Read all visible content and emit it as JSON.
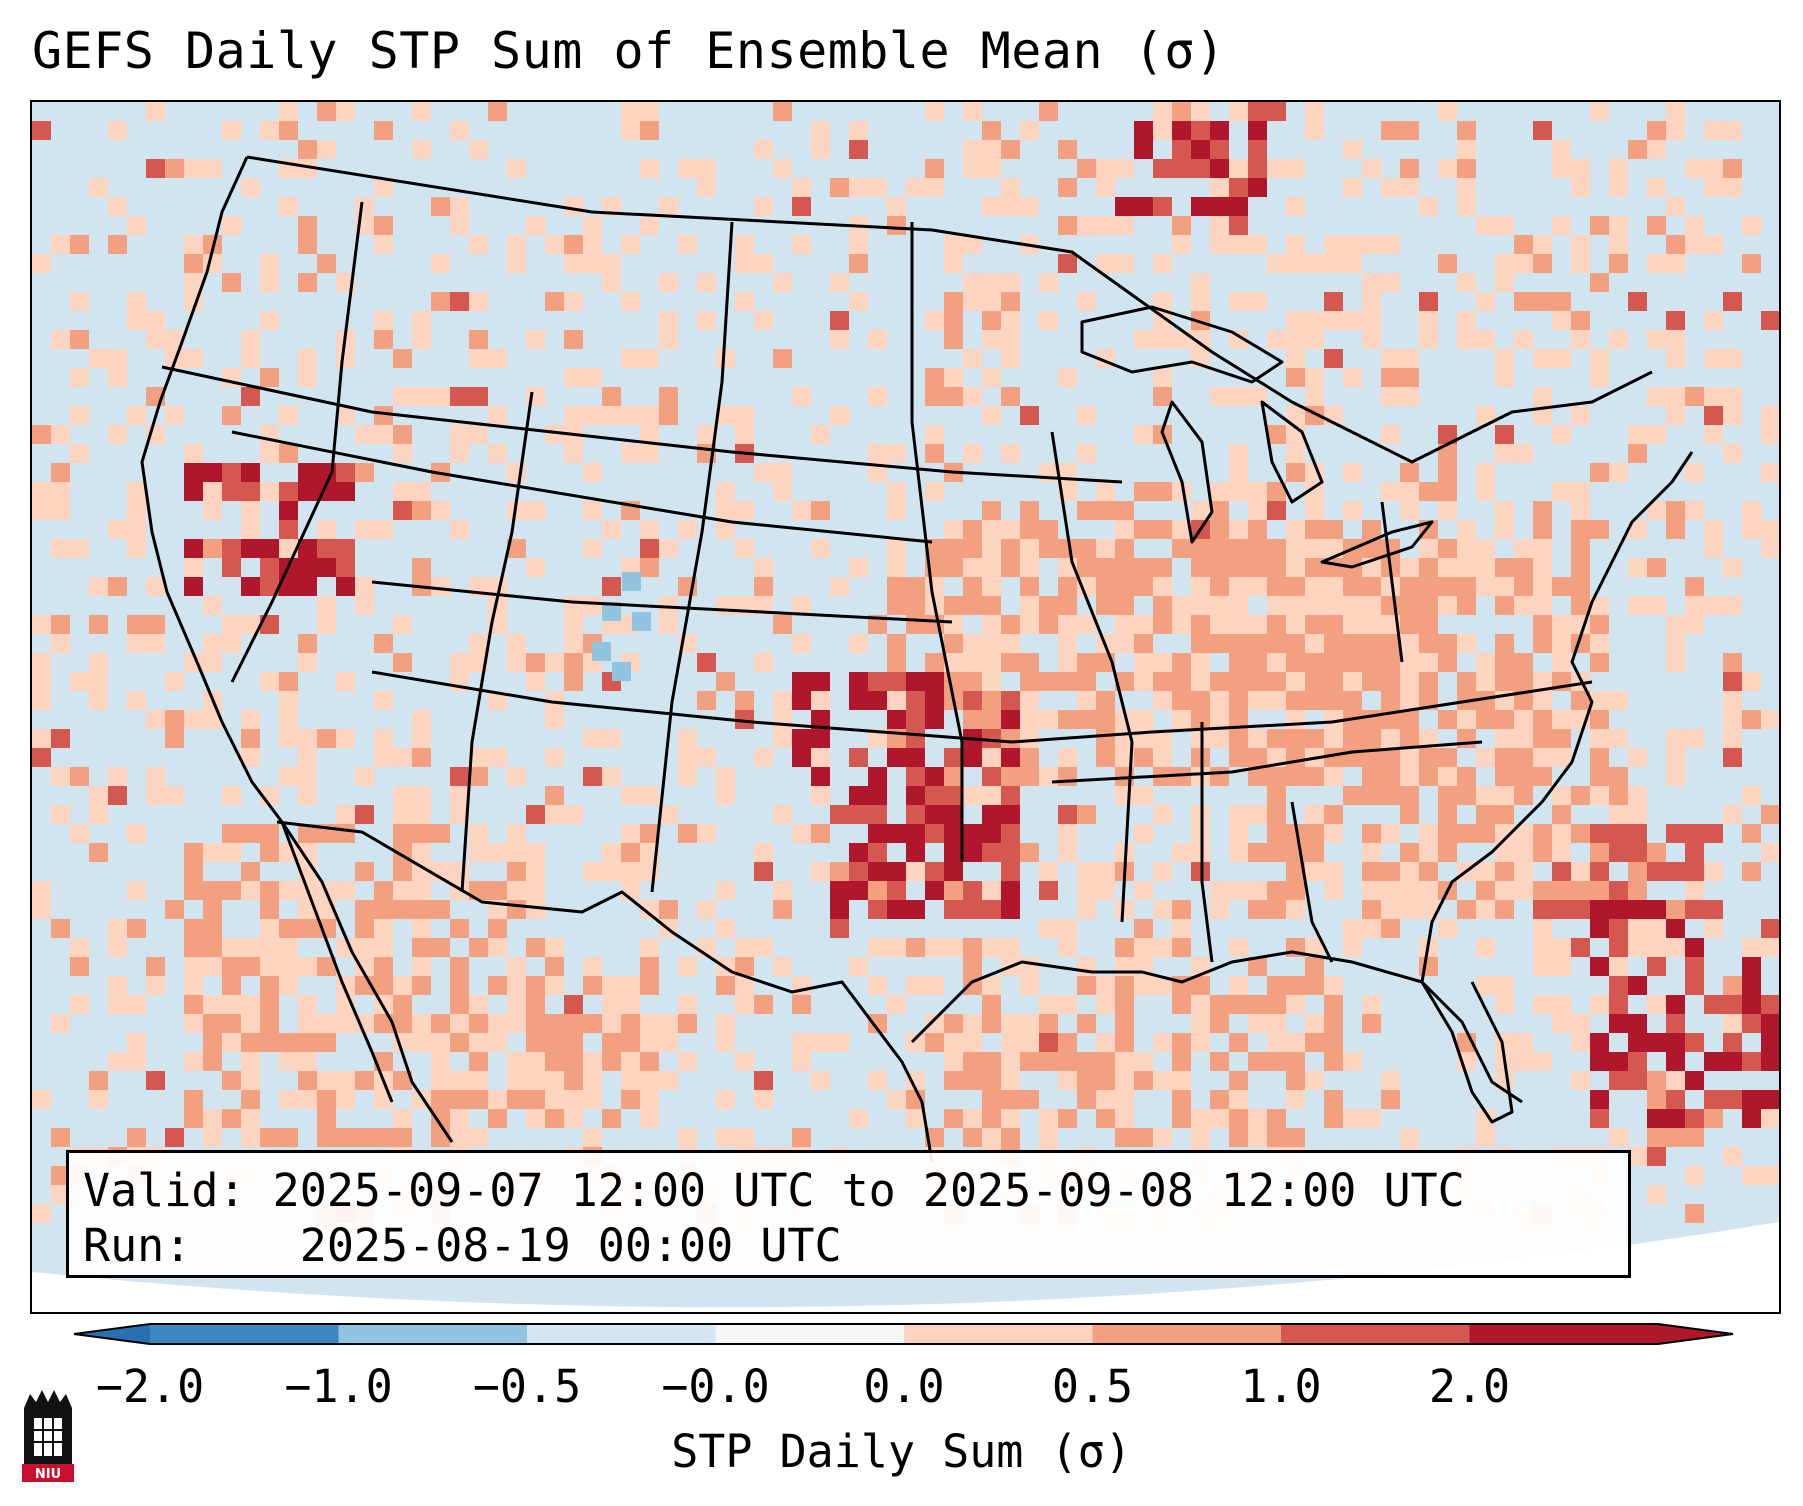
{
  "title": "GEFS Daily STP Sum of Ensemble Mean (σ)",
  "info": {
    "valid_label": "Valid:",
    "valid_value": "2025-09-07 12:00 UTC to 2025-09-08 12:00 UTC",
    "run_label": "Run:",
    "run_value": "2025-08-19 00:00 UTC"
  },
  "colorbar": {
    "label": "STP Daily Sum (σ)",
    "ticks": [
      "−2.0",
      "−1.0",
      "−0.5",
      "−0.0",
      "0.0",
      "0.5",
      "1.0",
      "2.0"
    ],
    "colors": [
      "#3a87c2",
      "#91c4e0",
      "#d3e6f2",
      "#f7f7f7",
      "#fcd4c0",
      "#f2a07f",
      "#d4584f",
      "#b0172d"
    ],
    "extend_low_color": "#2a6fb0",
    "extend_high_color": "#b0172d"
  },
  "map": {
    "background_color": "#d1e5f0",
    "region": "Contiguous United States",
    "hotspots_sigma_above_1": [
      "Nevada",
      "Oklahoma",
      "Kansas",
      "Atlantic offshore"
    ]
  },
  "logo": {
    "text": "NIU"
  }
}
